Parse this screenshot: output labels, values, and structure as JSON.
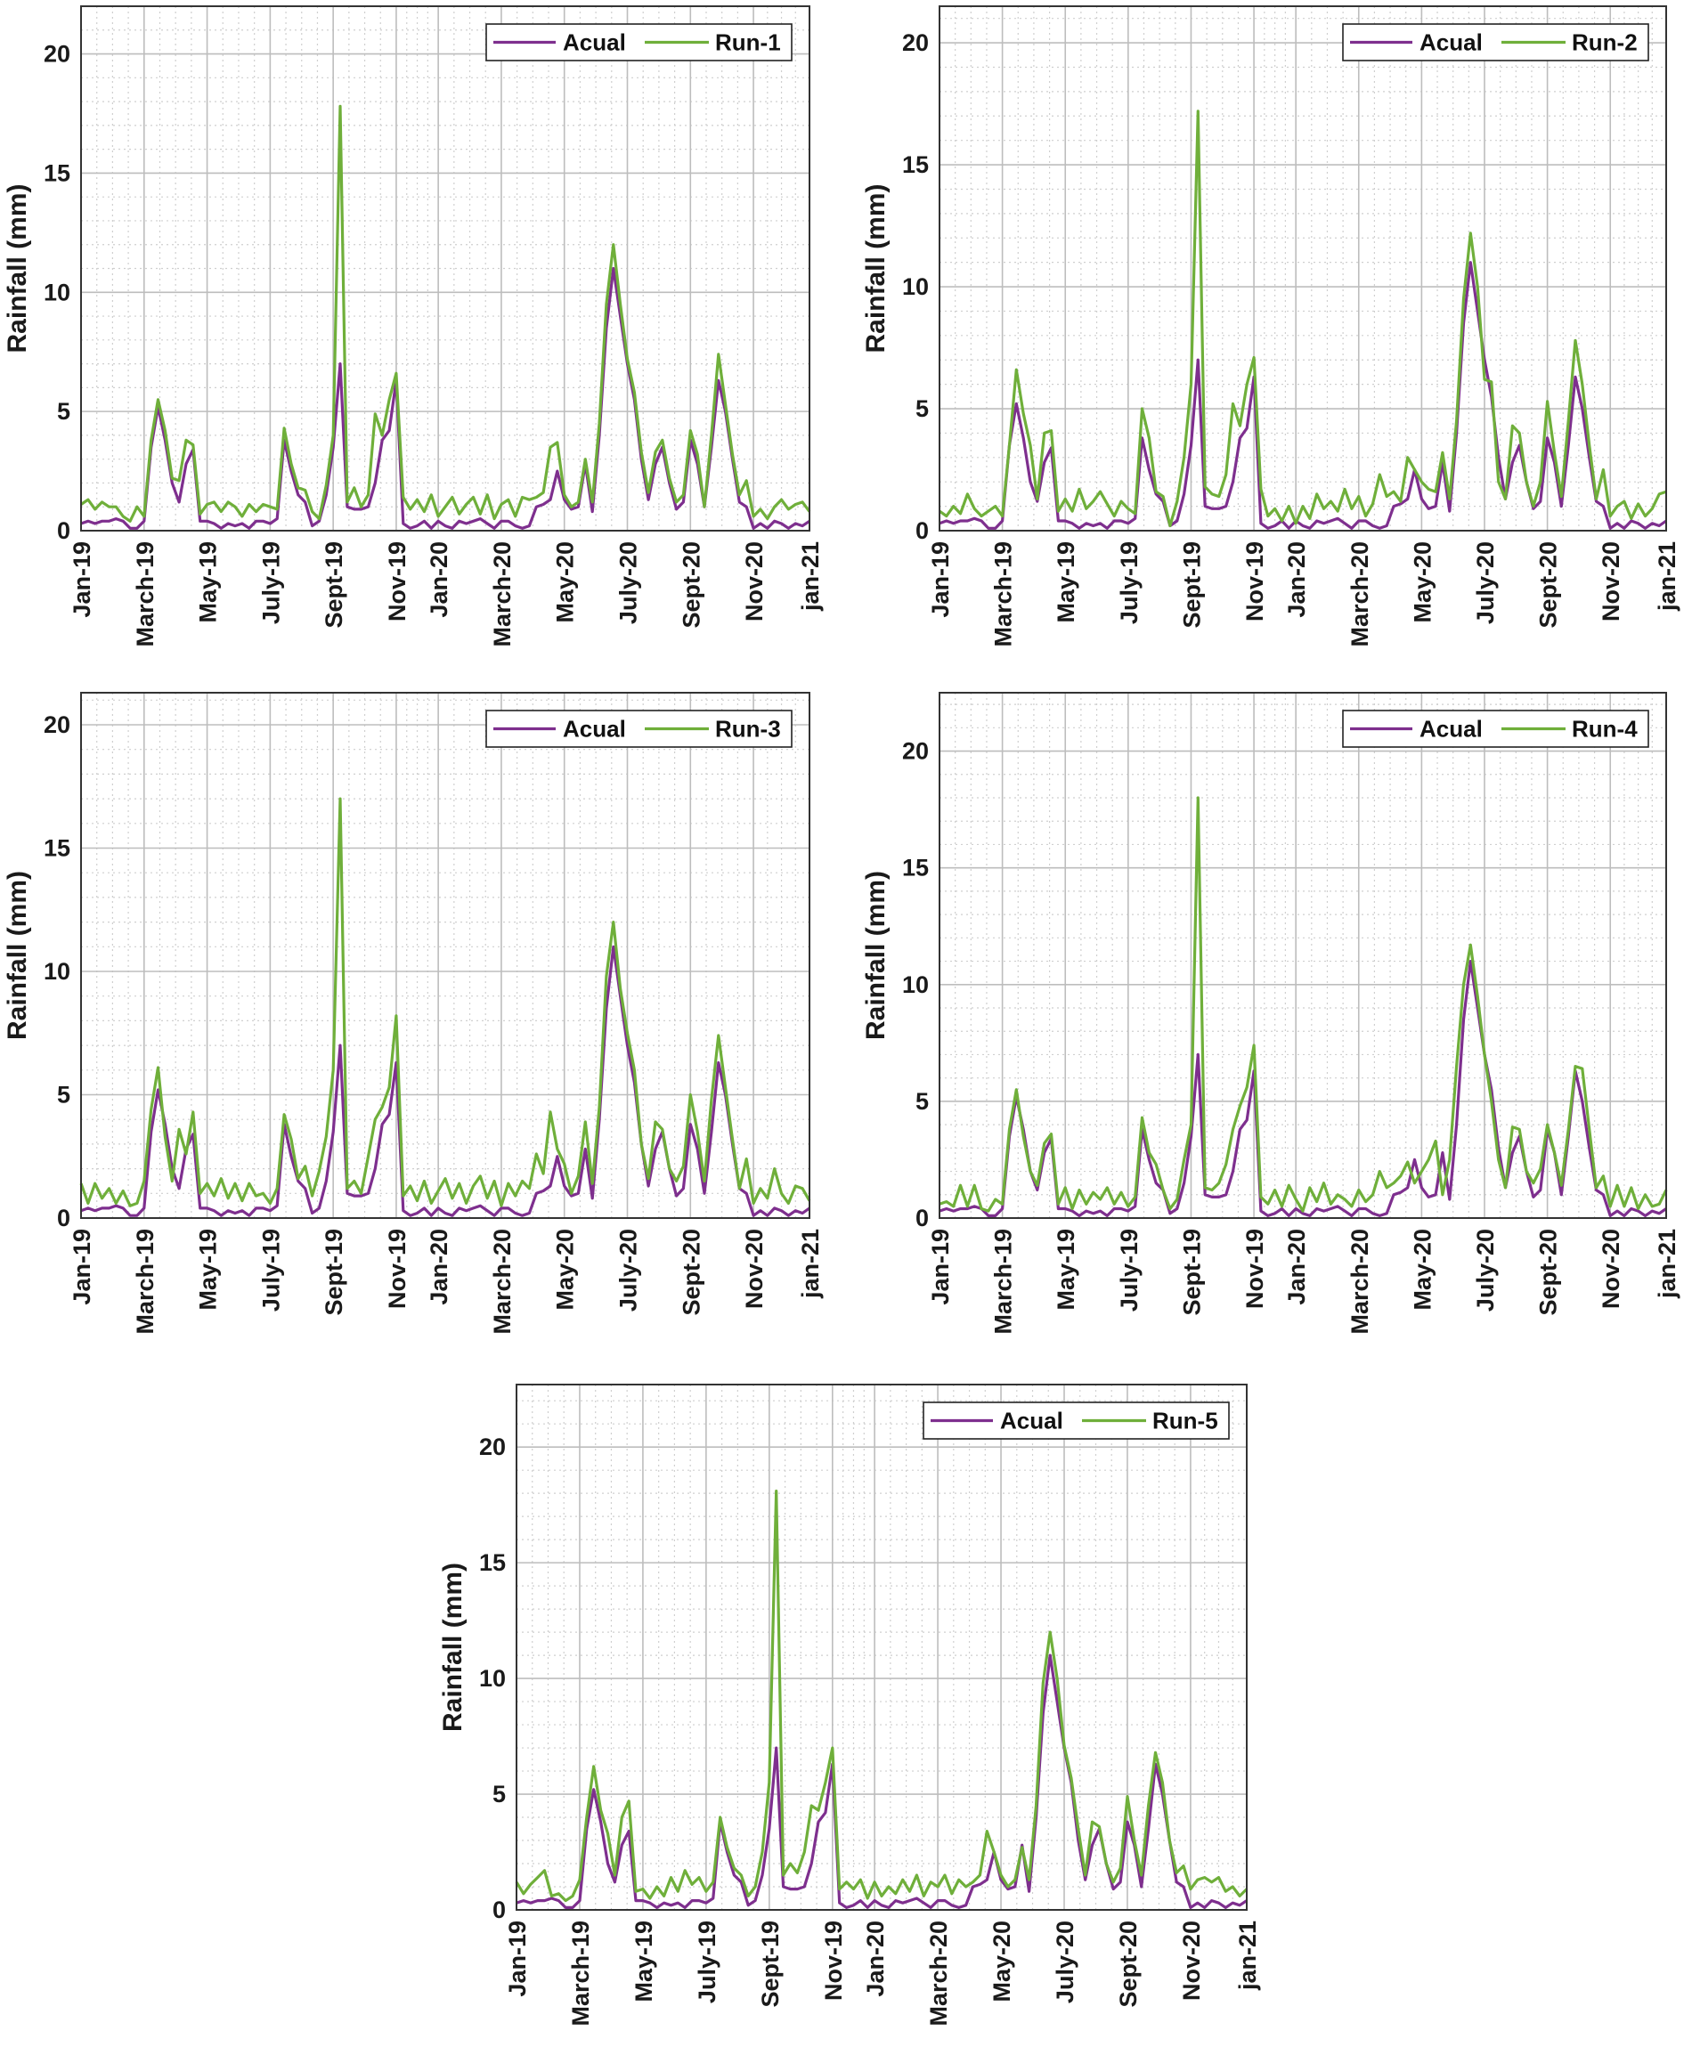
{
  "colors": {
    "actual": "#7E2F8E",
    "run": "#6FAF3A"
  },
  "chart_data": {
    "type": "line",
    "grid": "major solid, minor dotted",
    "ylabel": "Rainfall (mm)",
    "yticks": [
      0,
      5,
      10,
      15,
      20
    ],
    "xticks": [
      {
        "label": "Jan-19",
        "at": 0
      },
      {
        "label": "March-19",
        "at": 9
      },
      {
        "label": "May-19",
        "at": 18
      },
      {
        "label": "July-19",
        "at": 27
      },
      {
        "label": "Sept-19",
        "at": 36
      },
      {
        "label": "Nov-19",
        "at": 45
      },
      {
        "label": "Jan-20",
        "at": 51
      },
      {
        "label": "March-20",
        "at": 60
      },
      {
        "label": "May-20",
        "at": 69
      },
      {
        "label": "July-20",
        "at": 78
      },
      {
        "label": "Sept-20",
        "at": 87
      },
      {
        "label": "Nov-20",
        "at": 96
      },
      {
        "label": "jan-21",
        "at": 104
      }
    ],
    "actual_name": "Acual",
    "actual": [
      0.3,
      0.4,
      0.3,
      0.4,
      0.4,
      0.5,
      0.4,
      0.1,
      0.1,
      0.4,
      3.5,
      5.2,
      3.8,
      2.0,
      1.2,
      2.8,
      3.4,
      0.4,
      0.4,
      0.3,
      0.1,
      0.3,
      0.2,
      0.3,
      0.1,
      0.4,
      0.4,
      0.3,
      0.5,
      3.8,
      2.5,
      1.5,
      1.2,
      0.2,
      0.4,
      1.5,
      3.5,
      7.0,
      1.0,
      0.9,
      0.9,
      1.0,
      2.0,
      3.8,
      4.2,
      6.3,
      0.3,
      0.1,
      0.2,
      0.4,
      0.1,
      0.4,
      0.2,
      0.1,
      0.4,
      0.3,
      0.4,
      0.5,
      0.3,
      0.1,
      0.4,
      0.4,
      0.2,
      0.1,
      0.2,
      1.0,
      1.1,
      1.3,
      2.5,
      1.3,
      0.9,
      1.0,
      2.8,
      0.8,
      4.0,
      8.5,
      11.0,
      9.0,
      7.0,
      5.5,
      3.0,
      1.3,
      2.8,
      3.5,
      2.0,
      0.9,
      1.2,
      3.8,
      2.8,
      1.0,
      3.5,
      6.3,
      5.0,
      3.0,
      1.2,
      1.0,
      0.1,
      0.3,
      0.1,
      0.4,
      0.3,
      0.1,
      0.3,
      0.2,
      0.4
    ],
    "panels": [
      {
        "name": "Run-1",
        "ylim": [
          0,
          22
        ],
        "legend": "top-right",
        "values": [
          1.1,
          1.3,
          0.9,
          1.2,
          1.0,
          1.0,
          0.6,
          0.4,
          1.0,
          0.6,
          3.8,
          5.5,
          4.2,
          2.2,
          2.1,
          3.8,
          3.6,
          0.7,
          1.1,
          1.2,
          0.8,
          1.2,
          1.0,
          0.6,
          1.1,
          0.8,
          1.1,
          1.0,
          0.9,
          4.3,
          2.8,
          1.8,
          1.7,
          0.8,
          0.5,
          1.9,
          4.0,
          17.8,
          1.2,
          1.8,
          1.0,
          1.5,
          4.9,
          4.0,
          5.5,
          6.6,
          1.4,
          0.9,
          1.3,
          0.8,
          1.5,
          0.6,
          1.0,
          1.4,
          0.7,
          1.1,
          1.4,
          0.7,
          1.5,
          0.5,
          1.1,
          1.3,
          0.6,
          1.4,
          1.3,
          1.4,
          1.6,
          3.5,
          3.7,
          1.5,
          1.0,
          1.2,
          3.0,
          1.2,
          4.5,
          9.5,
          12.0,
          9.5,
          7.2,
          5.8,
          3.3,
          1.6,
          3.3,
          3.8,
          2.2,
          1.2,
          1.5,
          4.2,
          3.2,
          1.0,
          4.0,
          7.4,
          5.3,
          3.2,
          1.5,
          2.1,
          0.6,
          0.9,
          0.5,
          1.0,
          1.3,
          0.9,
          1.1,
          1.2,
          0.8
        ]
      },
      {
        "name": "Run-2",
        "ylim": [
          0,
          21.5
        ],
        "legend": "top-right",
        "values": [
          0.8,
          0.6,
          1.0,
          0.7,
          1.5,
          0.9,
          0.6,
          0.8,
          1.0,
          0.6,
          3.5,
          6.6,
          4.8,
          3.5,
          1.3,
          4.0,
          4.1,
          0.8,
          1.3,
          0.8,
          1.7,
          0.9,
          1.2,
          1.6,
          1.1,
          0.6,
          1.2,
          0.9,
          0.7,
          5.0,
          3.8,
          1.6,
          1.4,
          0.2,
          1.2,
          3.0,
          6.0,
          17.2,
          1.8,
          1.5,
          1.4,
          2.3,
          5.2,
          4.3,
          6.0,
          7.1,
          1.7,
          0.6,
          0.9,
          0.4,
          1.0,
          0.3,
          1.0,
          0.5,
          1.5,
          0.9,
          1.2,
          0.8,
          1.7,
          0.9,
          1.4,
          0.6,
          1.1,
          2.3,
          1.4,
          1.6,
          1.2,
          3.0,
          2.5,
          2.0,
          1.7,
          1.6,
          3.2,
          1.3,
          4.5,
          9.5,
          12.2,
          10.0,
          6.2,
          6.1,
          2.0,
          1.3,
          4.3,
          4.0,
          2.0,
          1.0,
          2.0,
          5.3,
          3.2,
          1.4,
          4.5,
          7.8,
          6.0,
          3.5,
          1.3,
          2.5,
          0.6,
          1.0,
          1.2,
          0.5,
          1.1,
          0.6,
          0.9,
          1.5,
          1.6
        ]
      },
      {
        "name": "Run-3",
        "ylim": [
          0,
          21.3
        ],
        "legend": "top-right",
        "values": [
          1.4,
          0.6,
          1.4,
          0.8,
          1.2,
          0.6,
          1.1,
          0.5,
          0.6,
          1.5,
          4.4,
          6.1,
          3.3,
          1.5,
          3.6,
          2.6,
          4.3,
          1.0,
          1.4,
          0.9,
          1.6,
          0.8,
          1.4,
          0.7,
          1.4,
          0.9,
          1.0,
          0.6,
          1.2,
          4.2,
          3.2,
          1.6,
          2.1,
          0.9,
          1.9,
          3.3,
          6.0,
          17.0,
          1.2,
          1.5,
          1.0,
          2.5,
          4.0,
          4.5,
          5.3,
          8.2,
          0.9,
          1.3,
          0.7,
          1.5,
          0.6,
          1.1,
          1.6,
          0.8,
          1.4,
          0.6,
          1.3,
          1.7,
          0.8,
          1.5,
          0.5,
          1.4,
          0.9,
          1.5,
          1.2,
          2.6,
          1.8,
          4.3,
          2.8,
          2.2,
          1.0,
          1.7,
          3.9,
          1.4,
          4.5,
          9.8,
          12.0,
          9.3,
          7.5,
          6.0,
          3.0,
          1.6,
          3.9,
          3.6,
          2.0,
          1.5,
          2.1,
          5.0,
          3.5,
          1.5,
          4.8,
          7.4,
          5.3,
          3.2,
          1.2,
          2.4,
          0.6,
          1.2,
          0.8,
          2.0,
          1.0,
          0.6,
          1.3,
          1.2,
          0.7
        ]
      },
      {
        "name": "Run-4",
        "ylim": [
          0,
          22.5
        ],
        "legend": "top-right",
        "values": [
          0.6,
          0.7,
          0.5,
          1.4,
          0.5,
          1.4,
          0.4,
          0.3,
          0.8,
          0.6,
          3.8,
          5.5,
          3.5,
          2.0,
          1.4,
          3.2,
          3.6,
          0.6,
          1.3,
          0.4,
          1.2,
          0.6,
          1.1,
          0.8,
          1.3,
          0.6,
          1.1,
          0.5,
          0.9,
          4.3,
          2.8,
          2.3,
          1.2,
          0.4,
          0.8,
          2.5,
          4.0,
          18.0,
          1.3,
          1.2,
          1.5,
          2.3,
          3.8,
          4.8,
          5.6,
          7.4,
          0.9,
          0.6,
          1.2,
          0.5,
          1.4,
          0.8,
          0.3,
          1.3,
          0.7,
          1.5,
          0.6,
          1.0,
          0.8,
          0.5,
          1.2,
          0.7,
          1.0,
          2.0,
          1.3,
          1.5,
          1.8,
          2.4,
          1.5,
          2.0,
          2.5,
          3.3,
          1.0,
          2.5,
          6.5,
          10.0,
          11.7,
          9.5,
          7.0,
          5.0,
          2.5,
          1.3,
          3.9,
          3.8,
          2.0,
          1.5,
          2.1,
          4.0,
          2.8,
          1.4,
          3.8,
          6.5,
          6.4,
          3.8,
          1.3,
          1.8,
          0.5,
          1.4,
          0.5,
          1.3,
          0.4,
          1.0,
          0.5,
          0.6,
          1.2
        ]
      },
      {
        "name": "Run-5",
        "ylim": [
          0,
          22.7
        ],
        "legend": "top-right",
        "values": [
          1.2,
          0.7,
          1.1,
          1.4,
          1.7,
          0.6,
          0.7,
          0.4,
          0.6,
          1.3,
          4.0,
          6.2,
          4.3,
          3.3,
          1.5,
          4.0,
          4.7,
          0.8,
          0.9,
          0.5,
          1.0,
          0.6,
          1.4,
          0.8,
          1.7,
          1.1,
          1.4,
          0.8,
          1.2,
          4.0,
          2.7,
          1.8,
          1.5,
          0.6,
          1.0,
          2.5,
          5.5,
          18.1,
          1.5,
          2.0,
          1.6,
          2.5,
          4.5,
          4.3,
          5.5,
          7.0,
          0.9,
          1.2,
          0.9,
          1.3,
          0.5,
          1.2,
          0.6,
          1.0,
          0.7,
          1.3,
          0.8,
          1.5,
          0.6,
          1.2,
          1.0,
          1.5,
          0.7,
          1.3,
          1.0,
          1.2,
          1.5,
          3.4,
          2.5,
          1.5,
          1.0,
          1.3,
          2.7,
          1.3,
          4.5,
          9.8,
          12.0,
          10.0,
          7.1,
          5.7,
          3.5,
          1.5,
          3.8,
          3.6,
          2.0,
          1.2,
          1.8,
          4.9,
          3.0,
          1.5,
          4.5,
          6.8,
          5.5,
          3.0,
          1.6,
          1.9,
          0.9,
          1.3,
          1.4,
          1.2,
          1.4,
          0.8,
          1.0,
          0.6,
          0.9
        ]
      }
    ]
  }
}
